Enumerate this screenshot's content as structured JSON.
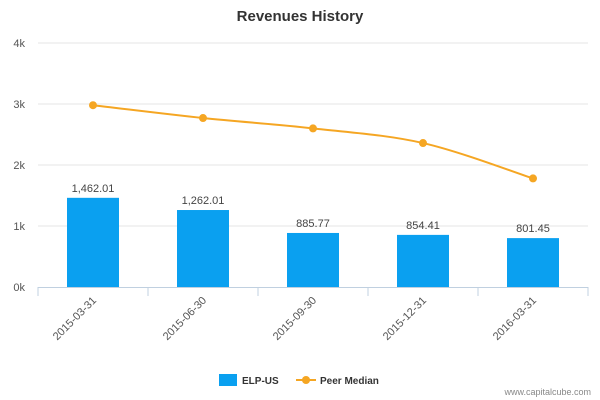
{
  "chart_data": {
    "type": "bar",
    "title": "Revenues History",
    "categories": [
      "2015-03-31",
      "2015-06-30",
      "2015-09-30",
      "2015-12-31",
      "2016-03-31"
    ],
    "series": [
      {
        "name": "ELP-US",
        "type": "bar",
        "color": "#0aa0f0",
        "values": [
          1462.01,
          1262.01,
          885.77,
          854.41,
          801.45
        ],
        "labels": [
          "1,462.01",
          "1,262.01",
          "885.77",
          "854.41",
          "801.45"
        ]
      },
      {
        "name": "Peer Median",
        "type": "line",
        "color": "#f5a623",
        "values": [
          2980,
          2770,
          2600,
          2360,
          1780
        ]
      }
    ],
    "ylim": [
      0,
      4000
    ],
    "yticks": [
      0,
      1000,
      2000,
      3000,
      4000
    ],
    "ytick_labels": [
      "0k",
      "1k",
      "2k",
      "3k",
      "4k"
    ],
    "grid": true,
    "legend_position": "bottom"
  },
  "credit": "www.capitalcube.com"
}
